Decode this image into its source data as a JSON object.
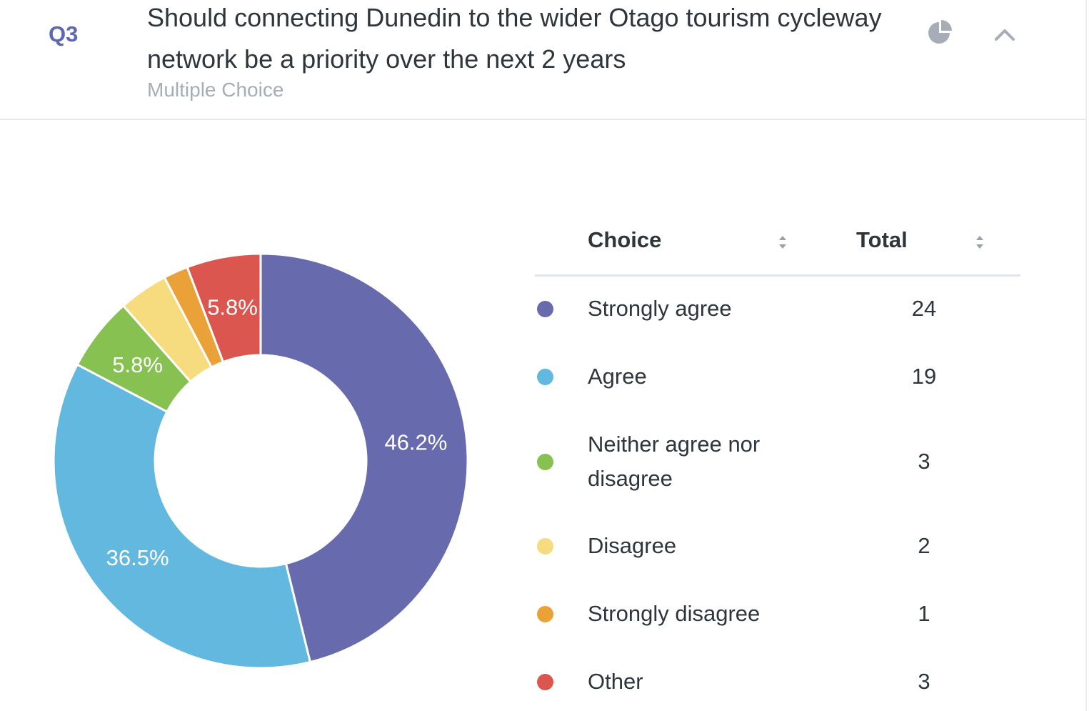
{
  "question": {
    "number": "Q3",
    "title": "Should connecting Dunedin to the wider Otago tourism cycleway network be a priority over the next 2 years",
    "type": "Multiple Choice"
  },
  "table": {
    "choice_header": "Choice",
    "total_header": "Total"
  },
  "chart_data": {
    "type": "pie",
    "donut": true,
    "categories": [
      "Strongly agree",
      "Agree",
      "Neither agree nor disagree",
      "Disagree",
      "Strongly disagree",
      "Other"
    ],
    "values": [
      24,
      19,
      3,
      2,
      1,
      3
    ],
    "data_labels": [
      "46.2%",
      "36.5%",
      "5.8%",
      "",
      "",
      "5.8%"
    ],
    "colors": [
      "#676bad",
      "#63b8e0",
      "#86c152",
      "#f6dc7f",
      "#eaa238",
      "#dc5650"
    ],
    "legend_placement": "right"
  }
}
